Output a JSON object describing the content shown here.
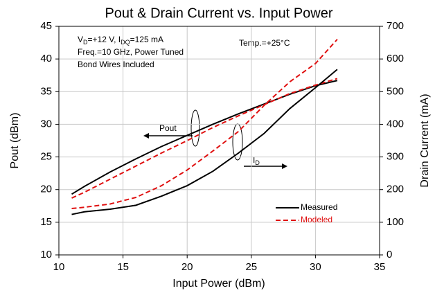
{
  "chart_data": {
    "type": "line",
    "title": "Pout & Drain Current vs. Input Power",
    "x_label": "Input Power (dBm)",
    "y_label": "Pout (dBm)",
    "y2_label": "Drain Current (mA)",
    "conditions": [
      [
        "V",
        "D",
        "=+12 V, I",
        "DQ",
        "=125 mA"
      ],
      [
        "Freq.=10 GHz, Power Tuned"
      ],
      [
        "Bond Wires Included"
      ]
    ],
    "temp": "Temp.=+25°C",
    "pout_label": "Pout",
    "id_label": [
      "I",
      "D"
    ],
    "x": [
      11,
      12,
      14,
      16,
      18,
      20,
      22,
      24,
      26,
      28,
      30,
      31.7
    ],
    "series": [
      {
        "name": "Measured",
        "color": "#000000",
        "dashed": false,
        "axis": "y",
        "values": [
          19.3,
          20.5,
          22.7,
          24.7,
          26.6,
          28.3,
          30.0,
          31.6,
          33.1,
          34.6,
          35.9,
          36.7
        ]
      },
      {
        "name": "Modeled",
        "color": "#e01010",
        "dashed": true,
        "axis": "y",
        "values": [
          18.7,
          19.6,
          21.6,
          23.6,
          25.6,
          27.5,
          29.5,
          31.3,
          33.0,
          34.7,
          36.0,
          37.0
        ]
      },
      {
        "name": "Measured",
        "color": "#000000",
        "dashed": false,
        "axis": "y2",
        "values": [
          124,
          132,
          140,
          152,
          180,
          212,
          256,
          312,
          372,
          448,
          512,
          568
        ]
      },
      {
        "name": "Modeled",
        "color": "#e01010",
        "dashed": true,
        "axis": "y2",
        "values": [
          142,
          146,
          156,
          176,
          212,
          260,
          318,
          378,
          458,
          530,
          586,
          660
        ]
      }
    ],
    "xlim": [
      10,
      35
    ],
    "xticks": [
      10,
      15,
      20,
      25,
      30,
      35
    ],
    "ylim": [
      10,
      45
    ],
    "yticks": [
      10,
      15,
      20,
      25,
      30,
      35,
      40,
      45
    ],
    "y2lim": [
      0,
      700
    ],
    "y2ticks": [
      0,
      100,
      200,
      300,
      400,
      500,
      600,
      700
    ],
    "grid": true,
    "legend": "lower right"
  }
}
